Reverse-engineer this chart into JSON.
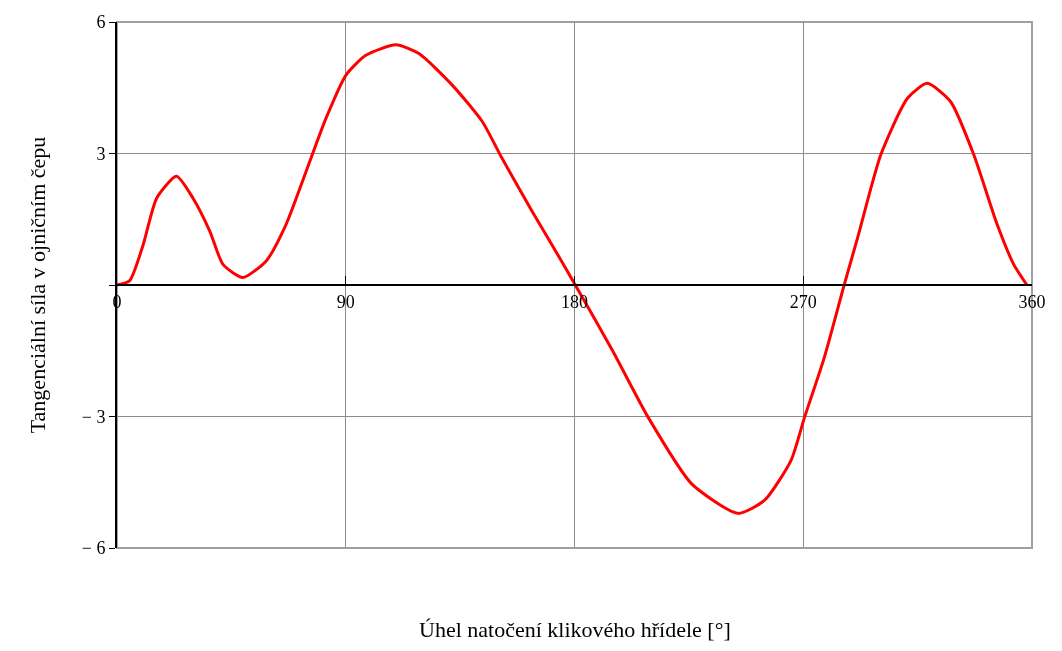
{
  "chart_data": {
    "type": "line",
    "xlabel": "Úhel natočení klikového hřídele [°]",
    "ylabel": "Tangenciální síla v ojničním čepu",
    "x": [
      0,
      5,
      10.3,
      15.6,
      23.4,
      29.9,
      36.5,
      41.7,
      49.5,
      58.7,
      66.5,
      74.4,
      82.2,
      90.1,
      97.9,
      109.7,
      118.8,
      131.9,
      143.7,
      151.5,
      163.3,
      171.1,
      180.3,
      195,
      209,
      226,
      244.3,
      254.8,
      265.2,
      270.5,
      278.3,
      286.1,
      291.4,
      300.5,
      311,
      318.8,
      328,
      337.1,
      346.3,
      352.8,
      358
    ],
    "series": [
      {
        "color": "#ff0000",
        "values": [
          0,
          0.1,
          0.92,
          1.98,
          2.48,
          1.98,
          1.23,
          0.47,
          0.17,
          0.55,
          1.38,
          2.59,
          3.8,
          4.79,
          5.24,
          5.48,
          5.28,
          4.56,
          3.73,
          2.89,
          1.68,
          0.92,
          0,
          -1.5,
          -3.02,
          -4.53,
          -5.21,
          -4.91,
          -4.0,
          -3.02,
          -1.65,
          0,
          1.08,
          2.97,
          4.26,
          4.6,
          4.18,
          2.97,
          1.38,
          0.47,
          0
        ]
      }
    ],
    "xlim": [
      0,
      360
    ],
    "xticks": [
      0,
      90,
      180,
      270,
      360
    ],
    "ylim": [
      -6,
      6
    ],
    "yticks": [
      {
        "value": -6,
        "label": "− 6"
      },
      {
        "value": -3,
        "label": "− 3"
      },
      {
        "value": 0,
        "label": null
      },
      3,
      6
    ],
    "grid": true,
    "marker": "none",
    "line_style": "solid"
  }
}
